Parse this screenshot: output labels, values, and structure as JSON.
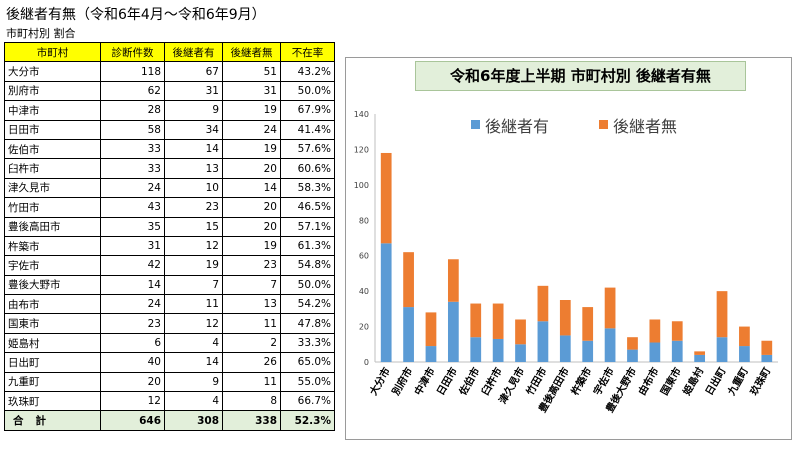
{
  "heading": "後継者有無（令和6年4月～令和6年9月）",
  "subheading": "市町村別 割合",
  "table": {
    "headers": [
      "市町村",
      "診断件数",
      "後継者有",
      "後継者無",
      "不在率"
    ],
    "rows": [
      [
        "大分市",
        "118",
        "67",
        "51",
        "43.2%"
      ],
      [
        "別府市",
        "62",
        "31",
        "31",
        "50.0%"
      ],
      [
        "中津市",
        "28",
        "9",
        "19",
        "67.9%"
      ],
      [
        "日田市",
        "58",
        "34",
        "24",
        "41.4%"
      ],
      [
        "佐伯市",
        "33",
        "14",
        "19",
        "57.6%"
      ],
      [
        "臼杵市",
        "33",
        "13",
        "20",
        "60.6%"
      ],
      [
        "津久見市",
        "24",
        "10",
        "14",
        "58.3%"
      ],
      [
        "竹田市",
        "43",
        "23",
        "20",
        "46.5%"
      ],
      [
        "豊後高田市",
        "35",
        "15",
        "20",
        "57.1%"
      ],
      [
        "杵築市",
        "31",
        "12",
        "19",
        "61.3%"
      ],
      [
        "宇佐市",
        "42",
        "19",
        "23",
        "54.8%"
      ],
      [
        "豊後大野市",
        "14",
        "7",
        "7",
        "50.0%"
      ],
      [
        "由布市",
        "24",
        "11",
        "13",
        "54.2%"
      ],
      [
        "国東市",
        "23",
        "12",
        "11",
        "47.8%"
      ],
      [
        "姫島村",
        "6",
        "4",
        "2",
        "33.3%"
      ],
      [
        "日出町",
        "40",
        "14",
        "26",
        "65.0%"
      ],
      [
        "九重町",
        "20",
        "9",
        "11",
        "55.0%"
      ],
      [
        "玖珠町",
        "12",
        "4",
        "8",
        "66.7%"
      ]
    ],
    "total": [
      "合計",
      "646",
      "308",
      "338",
      "52.3%"
    ]
  },
  "colors": {
    "series_with": "#5b9bd5",
    "series_without": "#ed7d31",
    "header_bg": "#ffff00",
    "total_bg": "#e2efda"
  },
  "chart_data": {
    "type": "bar",
    "stacked": true,
    "title": "令和6年度上半期 市町村別 後継者有無",
    "categories": [
      "大分市",
      "別府市",
      "中津市",
      "日田市",
      "佐伯市",
      "臼杵市",
      "津久見市",
      "竹田市",
      "豊後高田市",
      "杵築市",
      "宇佐市",
      "豊後大野市",
      "由布市",
      "国東市",
      "姫島村",
      "日出町",
      "九重町",
      "玖珠町"
    ],
    "series": [
      {
        "name": "後継者有",
        "values": [
          67,
          31,
          9,
          34,
          14,
          13,
          10,
          23,
          15,
          12,
          19,
          7,
          11,
          12,
          4,
          14,
          9,
          4
        ]
      },
      {
        "name": "後継者無",
        "values": [
          51,
          31,
          19,
          24,
          19,
          20,
          14,
          20,
          20,
          19,
          23,
          7,
          13,
          11,
          2,
          26,
          11,
          8
        ]
      }
    ],
    "ylim": [
      0,
      140
    ],
    "yticks": [
      "0",
      "20",
      "40",
      "60",
      "80",
      "100",
      "120",
      "140"
    ],
    "grid": false,
    "legend": "top"
  }
}
